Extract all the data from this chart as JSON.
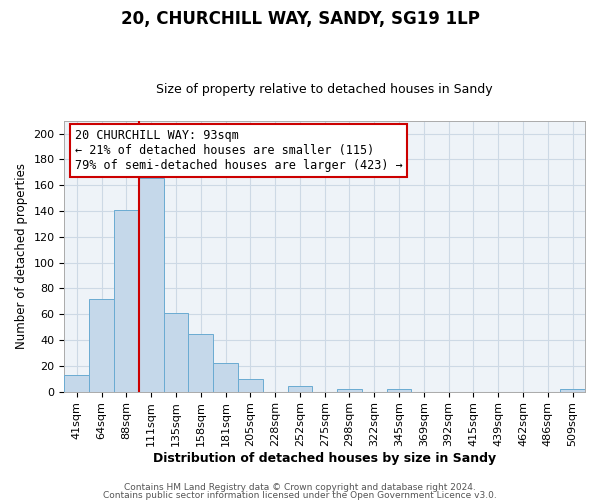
{
  "title": "20, CHURCHILL WAY, SANDY, SG19 1LP",
  "subtitle": "Size of property relative to detached houses in Sandy",
  "xlabel": "Distribution of detached houses by size in Sandy",
  "ylabel": "Number of detached properties",
  "bin_labels": [
    "41sqm",
    "64sqm",
    "88sqm",
    "111sqm",
    "135sqm",
    "158sqm",
    "181sqm",
    "205sqm",
    "228sqm",
    "252sqm",
    "275sqm",
    "298sqm",
    "322sqm",
    "345sqm",
    "369sqm",
    "392sqm",
    "415sqm",
    "439sqm",
    "462sqm",
    "486sqm",
    "509sqm"
  ],
  "bar_heights": [
    13,
    72,
    141,
    166,
    61,
    45,
    22,
    10,
    0,
    4,
    0,
    2,
    0,
    2,
    0,
    0,
    0,
    0,
    0,
    0,
    2
  ],
  "bar_color": "#c5d8ea",
  "bar_edge_color": "#6aabd2",
  "property_line_color": "#cc0000",
  "annotation_line1": "20 CHURCHILL WAY: 93sqm",
  "annotation_line2": "← 21% of detached houses are smaller (115)",
  "annotation_line3": "79% of semi-detached houses are larger (423) →",
  "annotation_box_color": "#ffffff",
  "annotation_box_edge_color": "#cc0000",
  "ylim": [
    0,
    210
  ],
  "yticks": [
    0,
    20,
    40,
    60,
    80,
    100,
    120,
    140,
    160,
    180,
    200
  ],
  "footer_line1": "Contains HM Land Registry data © Crown copyright and database right 2024.",
  "footer_line2": "Contains public sector information licensed under the Open Government Licence v3.0.",
  "background_color": "#ffffff",
  "grid_color": "#cdd9e5",
  "title_fontsize": 12,
  "subtitle_fontsize": 9,
  "xlabel_fontsize": 9,
  "ylabel_fontsize": 8.5,
  "tick_fontsize": 8,
  "annotation_fontsize": 8.5,
  "footer_fontsize": 6.5
}
